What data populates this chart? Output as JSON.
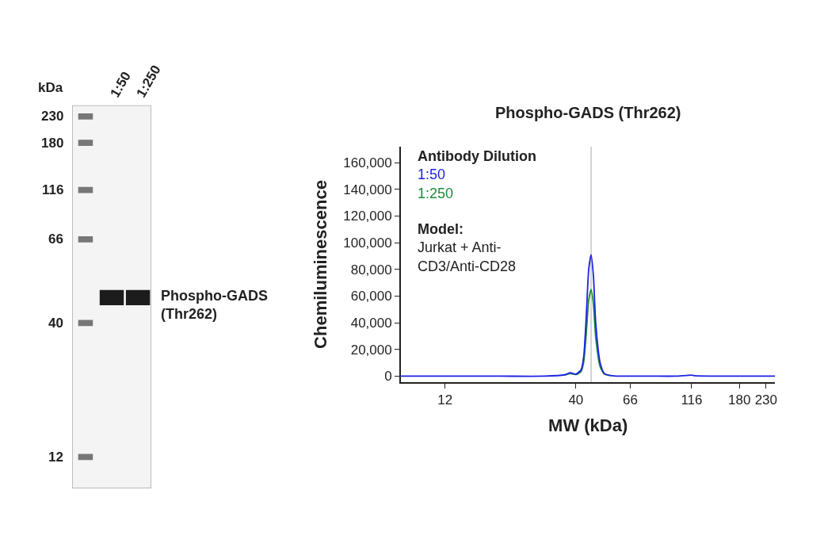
{
  "chart_data": [
    {
      "type": "other",
      "categories": [
        null,
        "1:50",
        "1:250"
      ],
      "ylabel": "kDa",
      "annotations": [
        "230",
        "180",
        "116",
        "66",
        "40",
        "12",
        "Phospho-GADS (Thr262)"
      ]
    },
    {
      "type": "line",
      "title": "Phospho-GADS (Thr262)",
      "xlabel": "MW (kDa)",
      "ylabel": "Chemiluminescence",
      "legend_title": "Antibody Dilution",
      "legend": "top left",
      "log": "x",
      "marker": "none",
      "line_style": "solid",
      "x": [
        8,
        12,
        20,
        30,
        36,
        38,
        40,
        42,
        43,
        44,
        45,
        46,
        47,
        48,
        50,
        52,
        55,
        60,
        66,
        80,
        100,
        116,
        120,
        150,
        180,
        230,
        250
      ],
      "series": [
        {
          "name": "1:50",
          "color": "#1e22e0",
          "values": [
            0,
            0,
            0,
            0,
            1000,
            2500,
            1500,
            5000,
            15000,
            45000,
            80000,
            91000,
            75000,
            40000,
            10000,
            2000,
            500,
            0,
            0,
            0,
            0,
            800,
            300,
            0,
            0,
            0,
            0
          ]
        },
        {
          "name": "1:250",
          "color": "#1a8a3a",
          "values": [
            null,
            null,
            null,
            null,
            800,
            2000,
            1200,
            3500,
            11000,
            32000,
            57000,
            65000,
            54000,
            29000,
            7000,
            1500,
            400,
            null,
            null,
            null,
            null,
            null,
            null,
            null,
            null,
            null,
            null
          ]
        }
      ],
      "xlim": [
        8,
        250
      ],
      "xticks": [
        12,
        40,
        66,
        116,
        180,
        230
      ],
      "ylim": [
        -4500,
        172000
      ],
      "yticks": [
        {
          "value": 0,
          "label": "0"
        },
        {
          "value": 20000,
          "label": "20,000"
        },
        {
          "value": 40000,
          "label": "40,000"
        },
        {
          "value": 60000,
          "label": "60,000"
        },
        {
          "value": 80000,
          "label": "80,000"
        },
        {
          "value": 100000,
          "label": "100,000"
        },
        {
          "value": 120000,
          "label": "120,000"
        },
        {
          "value": 140000,
          "label": "140,000"
        },
        {
          "value": 160000,
          "label": "160,000"
        }
      ],
      "ref_lines": [
        {
          "axis": "x",
          "value": 46,
          "color": "#aaaaaa"
        }
      ],
      "annotations": [
        "Model:",
        "Jurkat + Anti-CD3/Anti-CD28"
      ]
    }
  ]
}
